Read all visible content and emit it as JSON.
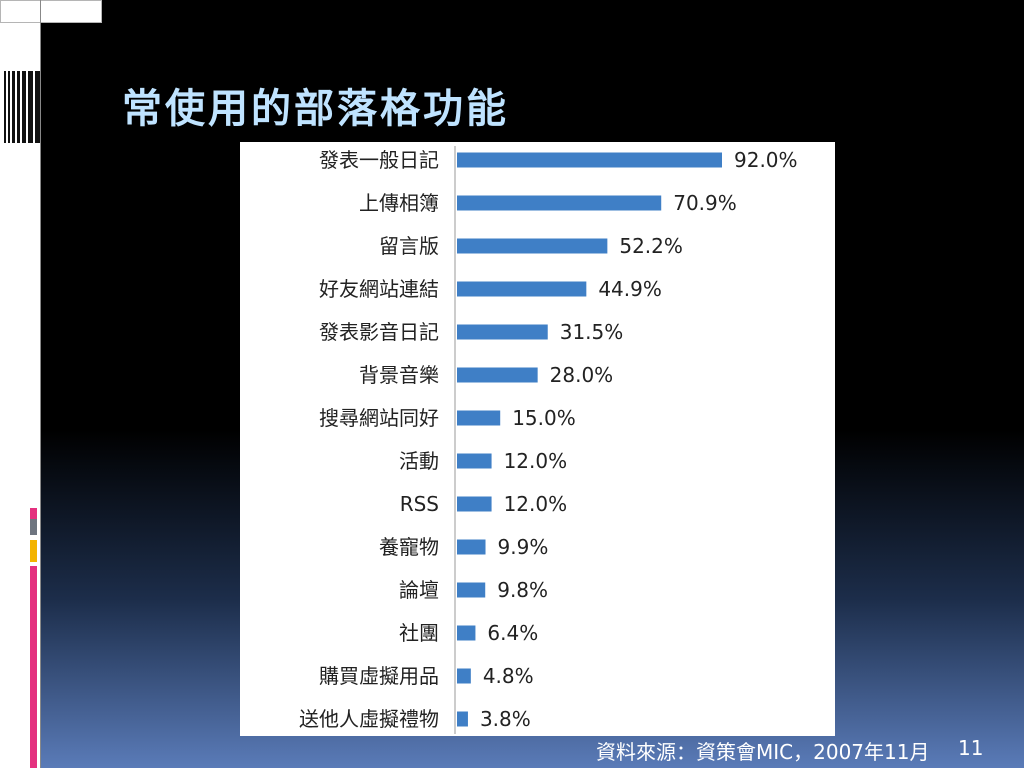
{
  "slide": {
    "title": "常使用的部落格功能",
    "source": "資料來源：資策會MIC，2007年11月",
    "page_number": "11"
  },
  "colors": {
    "title": "#bfe3ff",
    "bar": "#3f7fc6",
    "accent_pink": "#e4317f",
    "accent_gray": "#6e7580",
    "accent_yellow": "#f3b400"
  },
  "chart_data": {
    "type": "bar",
    "orientation": "horizontal",
    "categories": [
      "發表一般日記",
      "上傳相簿",
      "留言版",
      "好友網站連結",
      "發表影音日記",
      "背景音樂",
      "搜尋網站同好",
      "活動",
      "RSS",
      "養寵物",
      "論壇",
      "社團",
      "購買虛擬用品",
      "送他人虛擬禮物"
    ],
    "values": [
      92.0,
      70.9,
      52.2,
      44.9,
      31.5,
      28.0,
      15.0,
      12.0,
      12.0,
      9.9,
      9.8,
      6.4,
      4.8,
      3.8
    ],
    "value_labels": [
      "92.0%",
      "70.9%",
      "52.2%",
      "44.9%",
      "31.5%",
      "28.0%",
      "15.0%",
      "12.0%",
      "12.0%",
      "9.9%",
      "9.8%",
      "6.4%",
      "4.8%",
      "3.8%"
    ],
    "xlim": [
      0,
      100
    ],
    "grid": false,
    "legend": "none"
  }
}
